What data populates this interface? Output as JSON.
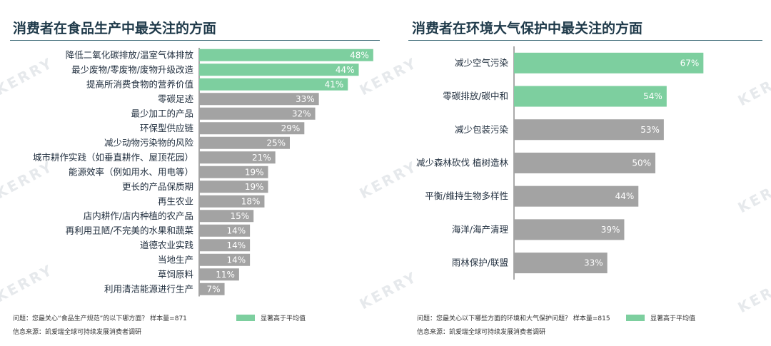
{
  "colors": {
    "highlight": "#7dcf9f",
    "normal": "#a3a3a3",
    "label_text": "#ffffff",
    "axis": "#555555"
  },
  "watermark": "KERRY",
  "chart_data": [
    {
      "type": "bar",
      "orientation": "horizontal",
      "title": "消费者在食品生产中最关注的方面",
      "categories": [
        "降低二氧化碳排放/温室气体排放",
        "最少废物/零废物/废物升级改造",
        "提高所消费食物的营养价值",
        "零碳足迹",
        "最少加工的产品",
        "环保型供应链",
        "减少动物污染物的风险",
        "城市耕作实践（如垂直耕作、屋顶花园）",
        "能源效率（例如用水、用电等）",
        "更长的产品保质期",
        "再生农业",
        "店内耕作/店内种植的农产品",
        "再利用丑陋/不完美的水果和蔬菜",
        "道德农业实践",
        "当地生产",
        "草饲原料",
        "利用清洁能源进行生产"
      ],
      "values": [
        48,
        44,
        41,
        33,
        32,
        29,
        25,
        21,
        19,
        19,
        18,
        15,
        14,
        14,
        14,
        11,
        7
      ],
      "value_labels": [
        "48%",
        "44%",
        "41%",
        "33%",
        "32%",
        "29%",
        "25%",
        "21%",
        "19%",
        "19%",
        "18%",
        "15%",
        "14%",
        "14%",
        "14%",
        "11%",
        "7%"
      ],
      "highlight_count": 3,
      "legend": "显著高于平均值",
      "question": "问题：您最关心“食品生产规范”的以下哪方面？ 样本量=871",
      "source": "信息来源：凯爱瑞全球可持续发展消费者调研"
    },
    {
      "type": "bar",
      "orientation": "horizontal",
      "title": "消费者在环境大气保护中最关注的方面",
      "categories": [
        "减少空气污染",
        "零碳排放/碳中和",
        "减少包装污染",
        "减少森林砍伐 植树造林",
        "平衡/维持生物多样性",
        "海洋/海产清理",
        "雨林保护/联盟"
      ],
      "values": [
        67,
        54,
        53,
        50,
        44,
        39,
        33
      ],
      "value_labels": [
        "67%",
        "54%",
        "53%",
        "50%",
        "44%",
        "39%",
        "33%"
      ],
      "highlight_count": 2,
      "legend": "显著高于平均值",
      "question": "问题：您最关心以下哪些方面的环境和大气保护问题？ 样本量=815",
      "source": "信息来源：凯爱瑞全球可持续发展消费者调研"
    }
  ]
}
